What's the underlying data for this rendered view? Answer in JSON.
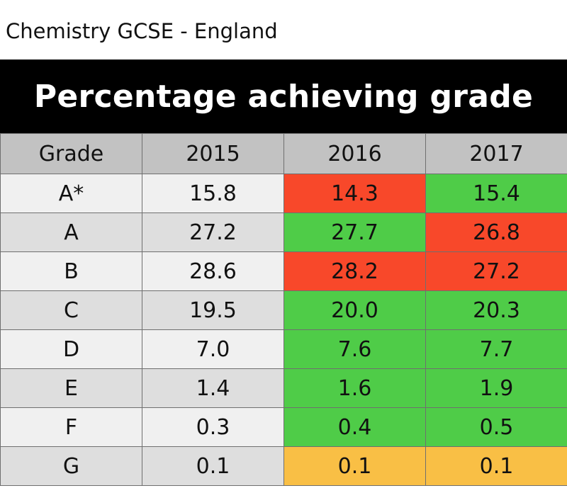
{
  "caption": "Chemistry GCSE - England",
  "chart_data": {
    "type": "table",
    "title": "Percentage achieving grade",
    "columns": [
      "Grade",
      "2015",
      "2016",
      "2017"
    ],
    "rows": [
      {
        "grade": "A*",
        "values": [
          "15.8",
          "14.3",
          "15.4"
        ],
        "colors": [
          "#f0f0f0",
          "#f8482a",
          "#4fcc48"
        ]
      },
      {
        "grade": "A",
        "values": [
          "27.2",
          "27.7",
          "26.8"
        ],
        "colors": [
          "#dedede",
          "#4fcc48",
          "#f8482a"
        ]
      },
      {
        "grade": "B",
        "values": [
          "28.6",
          "28.2",
          "27.2"
        ],
        "colors": [
          "#f0f0f0",
          "#f8482a",
          "#f8482a"
        ]
      },
      {
        "grade": "C",
        "values": [
          "19.5",
          "20.0",
          "20.3"
        ],
        "colors": [
          "#dedede",
          "#4fcc48",
          "#4fcc48"
        ]
      },
      {
        "grade": "D",
        "values": [
          "7.0",
          "7.6",
          "7.7"
        ],
        "colors": [
          "#f0f0f0",
          "#4fcc48",
          "#4fcc48"
        ]
      },
      {
        "grade": "E",
        "values": [
          "1.4",
          "1.6",
          "1.9"
        ],
        "colors": [
          "#dedede",
          "#4fcc48",
          "#4fcc48"
        ]
      },
      {
        "grade": "F",
        "values": [
          "0.3",
          "0.4",
          "0.5"
        ],
        "colors": [
          "#f0f0f0",
          "#4fcc48",
          "#4fcc48"
        ]
      },
      {
        "grade": "G",
        "values": [
          "0.1",
          "0.1",
          "0.1"
        ],
        "colors": [
          "#dedede",
          "#f9bf45",
          "#f9bf45"
        ]
      }
    ]
  },
  "legend_colors": {
    "increase": "#4fcc48",
    "decrease": "#f8482a",
    "unchanged": "#f9bf45",
    "baseline": "#f0f0f0"
  }
}
